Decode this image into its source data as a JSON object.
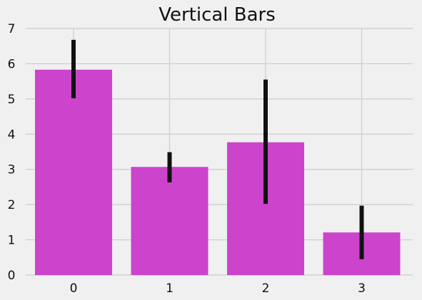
{
  "chart_data": {
    "type": "bar",
    "title": "Vertical Bars",
    "xlabel": "",
    "ylabel": "",
    "categories": [
      "0",
      "1",
      "2",
      "3"
    ],
    "values": [
      5.83,
      3.07,
      3.77,
      1.21
    ],
    "error_low": [
      5.02,
      2.63,
      2.02,
      0.45
    ],
    "error_high": [
      6.68,
      3.49,
      5.55,
      1.97
    ],
    "ylim": [
      0,
      7
    ],
    "yticks": [
      "0",
      "1",
      "2",
      "3",
      "4",
      "5",
      "6",
      "7"
    ],
    "grid": true,
    "colors": {
      "bar": "#cc44cc",
      "errorbar": "#111111",
      "grid": "#cbcbcb",
      "background": "#f0f0f0"
    }
  }
}
